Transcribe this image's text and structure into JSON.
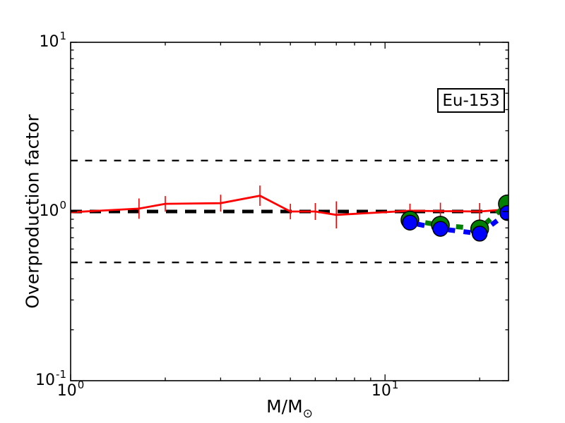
{
  "figure": {
    "background": "#ffffff",
    "frame_color": "#000000",
    "text_color": "#000000"
  },
  "chart_data": {
    "type": "line",
    "title": "",
    "xlabel_base": "M/M",
    "xlabel_sub": "⊙",
    "ylabel": "Overproduction factor",
    "annotation": {
      "label": "Eu-153"
    },
    "x_scale": "log",
    "y_scale": "log",
    "xlim": [
      1,
      24.7
    ],
    "ylim": [
      0.1,
      10
    ],
    "grid": false,
    "legend": "none",
    "x_major_ticks": [
      {
        "value": 1,
        "base": "10",
        "exp": "0"
      },
      {
        "value": 10,
        "base": "10",
        "exp": "1"
      }
    ],
    "x_minor_ticks": [
      2,
      3,
      4,
      5,
      6,
      7,
      8,
      9,
      20
    ],
    "y_major_ticks": [
      {
        "value": 0.1,
        "base": "10",
        "exp": "-1"
      },
      {
        "value": 1,
        "base": "10",
        "exp": "0"
      },
      {
        "value": 10,
        "base": "10",
        "exp": "1"
      }
    ],
    "y_minor_ticks": [
      0.2,
      0.3,
      0.4,
      0.5,
      0.6,
      0.7,
      0.8,
      0.9,
      2,
      3,
      4,
      5,
      6,
      7,
      8,
      9
    ],
    "ref_lines": [
      {
        "y": 2.0,
        "style": "thin-dashed",
        "color": "#000000"
      },
      {
        "y": 1.0,
        "style": "thick-dashed",
        "color": "#000000"
      },
      {
        "y": 0.5,
        "style": "thin-dashed",
        "color": "#000000"
      }
    ],
    "series": [
      {
        "name": "red-solid-errorbar",
        "color": "#ff0000",
        "style": "solid",
        "line_width": 2.8,
        "marker": "none",
        "x": [
          1.0,
          1.65,
          2,
          3,
          4,
          5,
          6,
          7,
          12,
          15,
          20,
          24.7
        ],
        "y": [
          0.99,
          1.04,
          1.11,
          1.12,
          1.24,
          1.0,
          1.0,
          0.955,
          1.01,
          1.005,
          1.0,
          1.03
        ],
        "yerr_dex": [
          0,
          0.06,
          0.046,
          0.05,
          0.06,
          0.046,
          0.05,
          0.08,
          0.042,
          0.05,
          0.05,
          0.04
        ]
      },
      {
        "name": "green-dashed-circles",
        "color": "#008000",
        "style": "dashed",
        "line_width": 7,
        "marker": "circle",
        "marker_radius": 12.5,
        "marker_edge_color": "#000000",
        "x": [
          12,
          15,
          20,
          24.5
        ],
        "y": [
          0.89,
          0.83,
          0.79,
          1.11
        ]
      },
      {
        "name": "blue-dashed-circles",
        "color": "#0000ff",
        "style": "dashed",
        "line_width": 7,
        "marker": "circle",
        "marker_radius": 10.5,
        "marker_edge_color": "#000000",
        "x": [
          12,
          15,
          20,
          24.5
        ],
        "y": [
          0.86,
          0.79,
          0.74,
          0.98
        ]
      }
    ]
  }
}
